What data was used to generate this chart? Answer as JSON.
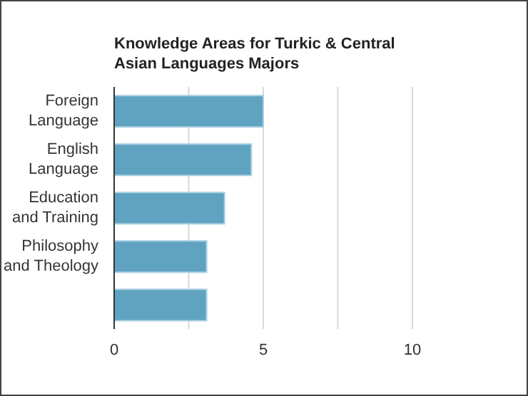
{
  "chart_data": {
    "type": "bar",
    "orientation": "horizontal",
    "title": "Knowledge Areas for Turkic & Central Asian Languages Majors",
    "categories": [
      "Foreign Language",
      "English Language",
      "Education and Training",
      "Philosophy and Theology",
      null
    ],
    "values": [
      5.0,
      4.6,
      3.7,
      3.1,
      3.1
    ],
    "color": "#5fa3c1",
    "xlim": [
      0,
      10
    ],
    "xticks": [
      0,
      {
        "value": 2.5,
        "label": null
      },
      5,
      {
        "value": 7.5,
        "label": null
      },
      10
    ],
    "grid": "x"
  }
}
